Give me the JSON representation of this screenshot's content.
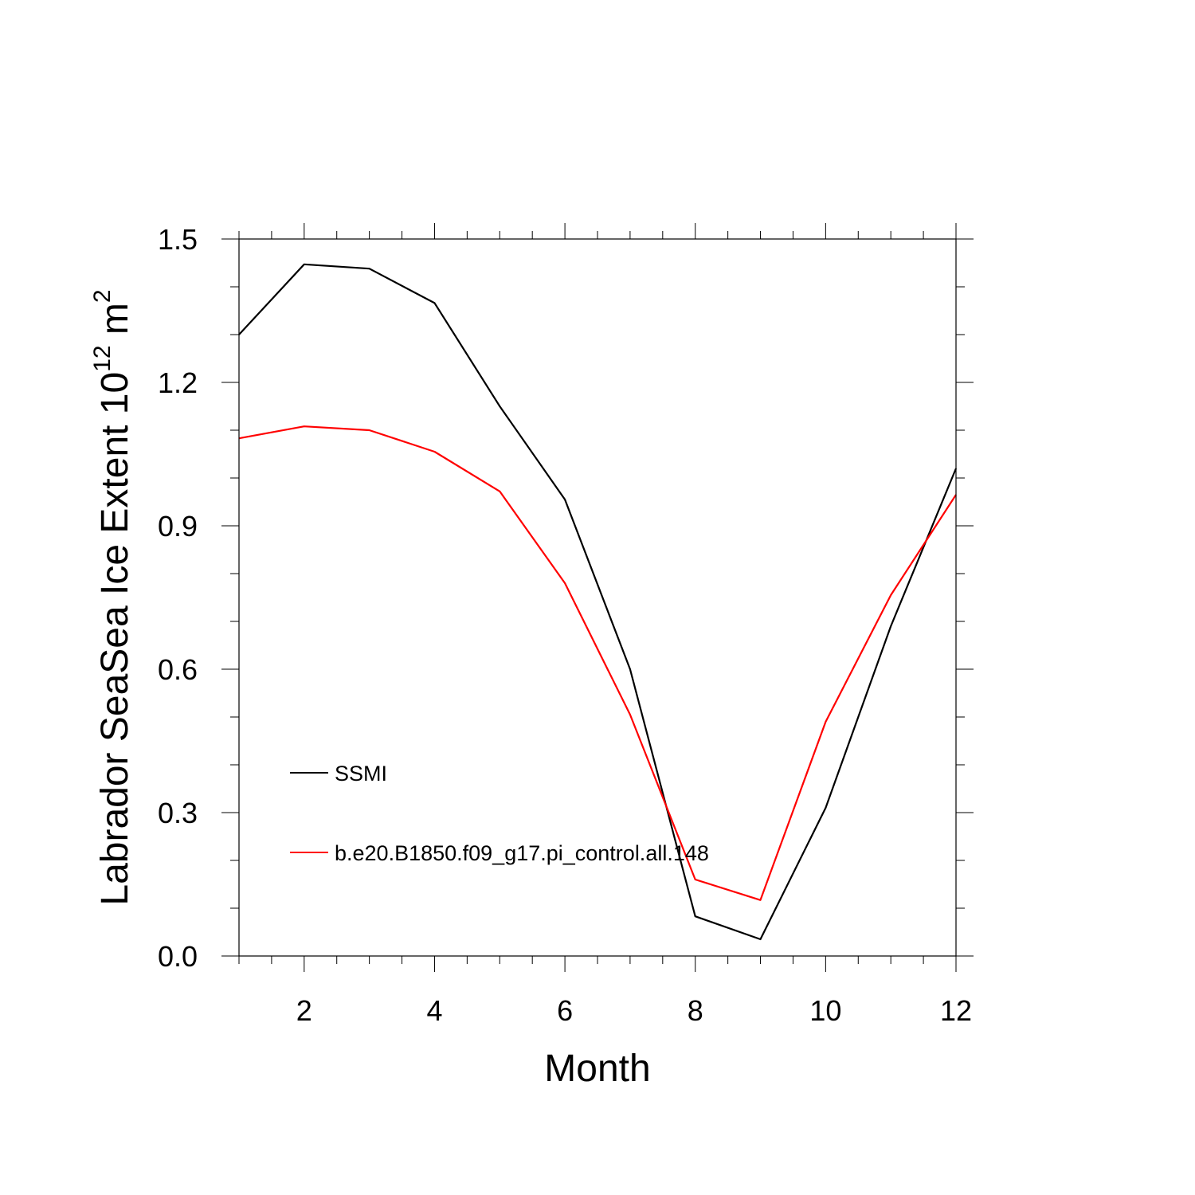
{
  "chart_data": {
    "type": "line",
    "title": "",
    "xlabel": "Month",
    "ylabel": {
      "base": "Labrador SeaSea Ice Extent 10",
      "exponent": "12",
      "unit": " m",
      "unit_exponent": "2"
    },
    "xlim": [
      1,
      12
    ],
    "ylim": [
      0,
      1.5
    ],
    "x": [
      1,
      2,
      3,
      4,
      5,
      6,
      7,
      8,
      9,
      10,
      11,
      12
    ],
    "x_ticks": [
      2,
      4,
      6,
      8,
      10,
      12
    ],
    "x_tick_labels": [
      "2",
      "4",
      "6",
      "8",
      "10",
      "12"
    ],
    "y_ticks": [
      0,
      0.3,
      0.6,
      0.9,
      1.2,
      1.5
    ],
    "y_tick_labels": [
      "0.0",
      "0.3",
      "0.6",
      "0.9",
      "1.2",
      "1.5"
    ],
    "grid": false,
    "legend_position": "lower-left",
    "series": [
      {
        "name": "SSMI",
        "color": "#000000",
        "values": [
          1.3,
          1.447,
          1.438,
          1.366,
          1.15,
          0.955,
          0.6,
          0.083,
          0.035,
          0.31,
          0.69,
          1.02
        ]
      },
      {
        "name": "b.e20.B1850.f09_g17.pi_control.all.148",
        "color": "#ff0000",
        "values": [
          1.083,
          1.108,
          1.1,
          1.055,
          0.972,
          0.78,
          0.505,
          0.16,
          0.117,
          0.49,
          0.755,
          0.965
        ]
      }
    ]
  }
}
